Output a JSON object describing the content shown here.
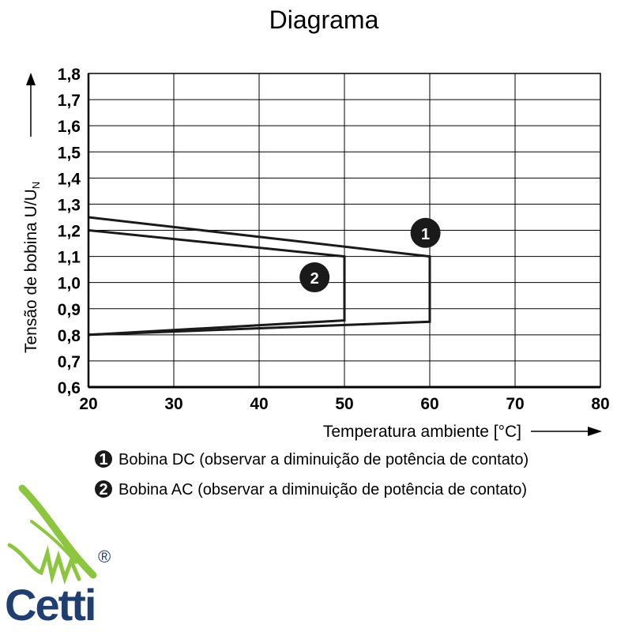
{
  "chart_data": {
    "type": "line",
    "title": "Diagrama",
    "xlabel": "Temperatura ambiente [°C]",
    "ylabel_main": "Tensão de bobina U/U",
    "ylabel_sub": "N",
    "xlim": [
      20,
      80
    ],
    "ylim": [
      0.6,
      1.8
    ],
    "xticks": [
      20,
      30,
      40,
      50,
      60,
      70,
      80
    ],
    "xtick_labels": [
      "20",
      "30",
      "40",
      "50",
      "60",
      "70",
      "80"
    ],
    "yticks": [
      0.6,
      0.7,
      0.8,
      0.9,
      1.0,
      1.1,
      1.2,
      1.3,
      1.4,
      1.5,
      1.6,
      1.7,
      1.8
    ],
    "ytick_labels": [
      "0,6",
      "0,7",
      "0,8",
      "0,9",
      "1,0",
      "1,1",
      "1,2",
      "1,3",
      "1,4",
      "1,5",
      "1,6",
      "1,7",
      "1,8"
    ],
    "grid": true,
    "series": [
      {
        "marker": "1",
        "points": [
          [
            20,
            1.25
          ],
          [
            60,
            1.1
          ],
          [
            60,
            0.85
          ],
          [
            20,
            0.8
          ]
        ],
        "marker_at": [
          59.5,
          1.19
        ]
      },
      {
        "marker": "2",
        "points": [
          [
            20,
            1.2
          ],
          [
            50,
            1.1
          ],
          [
            50,
            0.855
          ],
          [
            20,
            0.8
          ]
        ],
        "marker_at": [
          46.5,
          1.02
        ]
      }
    ],
    "legend": [
      {
        "marker": "1",
        "text": "Bobina DC (observar a diminuição de potência de contato)"
      },
      {
        "marker": "2",
        "text": "Bobina AC (observar a diminuição de potência de contato)"
      }
    ]
  },
  "logo": {
    "text": "Cetti",
    "registered": "®",
    "colors": {
      "green": "#8cc63f",
      "navy": "#1f3f73"
    }
  }
}
